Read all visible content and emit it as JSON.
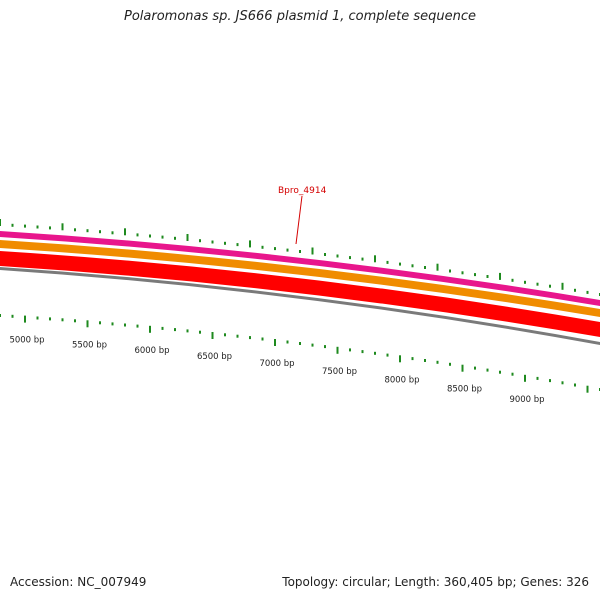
{
  "title": "Polaromonas sp. JS666 plasmid 1, complete sequence",
  "footer": {
    "accession": "Accession: NC_007949",
    "summary": "Topology: circular; Length: 360,405 bp; Genes: 326"
  },
  "gene_callout": {
    "label": "Bpro_4914"
  },
  "tracks": [
    {
      "name": "track-magenta",
      "color": "#e8168c"
    },
    {
      "name": "track-orange",
      "color": "#f08c00"
    },
    {
      "name": "track-red",
      "color": "#ff0000"
    },
    {
      "name": "track-gray",
      "color": "#7a7a7a"
    }
  ],
  "tick_color": "#1e8a1e",
  "callout_color": "#d40000",
  "scale_labels": [
    "5000 bp",
    "5500 bp",
    "6000 bp",
    "6500 bp",
    "7000 bp",
    "7500 bp",
    "8000 bp",
    "8500 bp",
    "9000 bp"
  ]
}
